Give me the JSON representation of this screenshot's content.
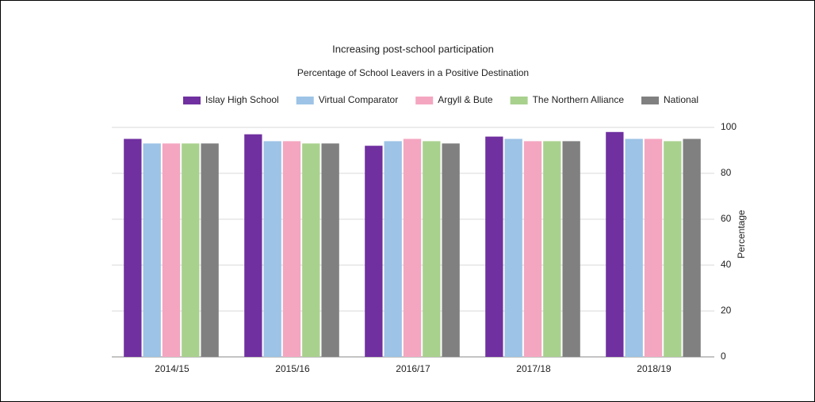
{
  "chart_data": {
    "type": "bar",
    "title": "Increasing post-school participation",
    "subtitle": "Percentage of School Leavers in a Positive Destination",
    "y_label": "Percentage",
    "categories": [
      "2014/15",
      "2015/16",
      "2016/17",
      "2017/18",
      "2018/19"
    ],
    "series": [
      {
        "name": "Islay High School",
        "color": "#7030a0",
        "values": [
          95,
          97,
          92,
          96,
          98
        ]
      },
      {
        "name": "Virtual Comparator",
        "color": "#9dc3e6",
        "values": [
          93,
          94,
          94,
          95,
          95
        ]
      },
      {
        "name": "Argyll & Bute",
        "color": "#f4a6c0",
        "values": [
          93,
          94,
          95,
          94,
          95
        ]
      },
      {
        "name": "The Northern Alliance",
        "color": "#a9d18e",
        "values": [
          93,
          93,
          94,
          94,
          94
        ]
      },
      {
        "name": "National",
        "color": "#808080",
        "values": [
          93,
          93,
          93,
          94,
          95
        ]
      }
    ],
    "ylim": [
      0,
      100
    ],
    "yticks": [
      0,
      20,
      40,
      60,
      80,
      100
    ],
    "grid": true,
    "legend": "top"
  }
}
